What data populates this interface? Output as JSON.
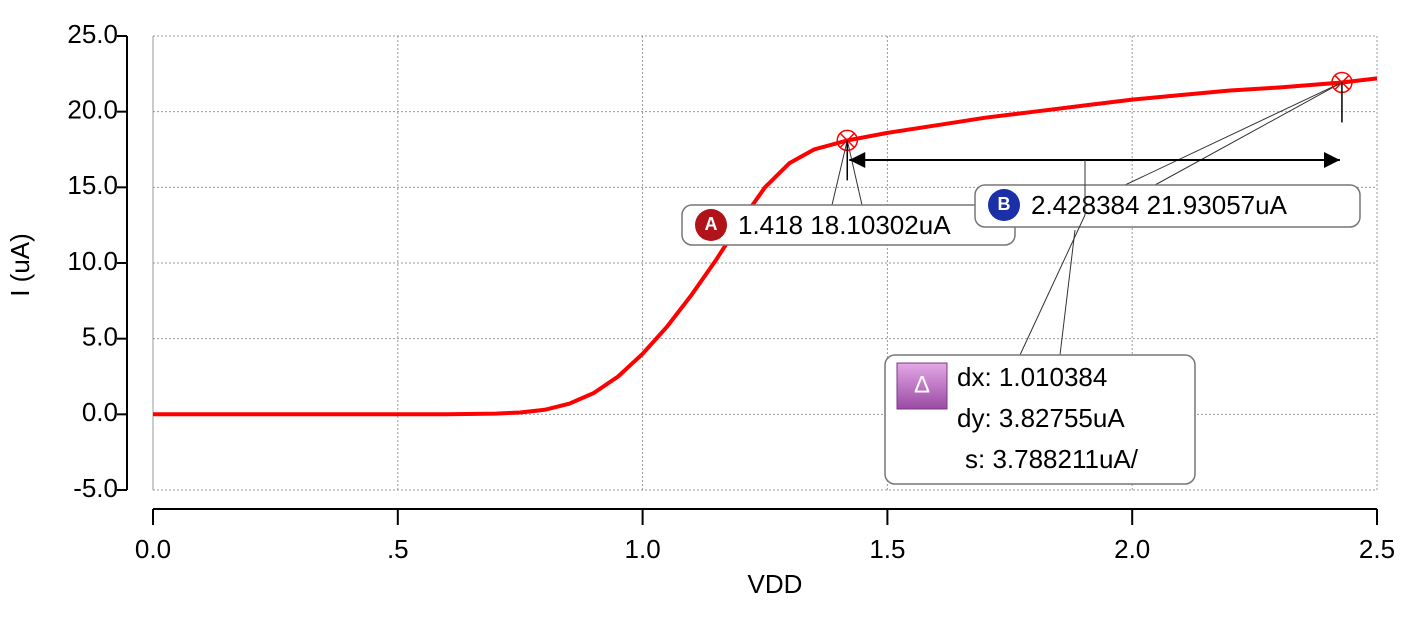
{
  "chart_data": {
    "type": "line",
    "x_label": "VDD",
    "y_label": "I (uA)",
    "x": [
      0,
      0.1,
      0.2,
      0.3,
      0.4,
      0.5,
      0.6,
      0.7,
      0.75,
      0.8,
      0.85,
      0.9,
      0.95,
      1.0,
      1.05,
      1.1,
      1.15,
      1.2,
      1.25,
      1.3,
      1.35,
      1.418,
      1.5,
      1.6,
      1.7,
      1.8,
      1.9,
      2.0,
      2.1,
      2.2,
      2.3,
      2.428384,
      2.5
    ],
    "series": [
      {
        "color": "#ff0000",
        "values": [
          0,
          0,
          0,
          0,
          0,
          0,
          0,
          0.05,
          0.12,
          0.3,
          0.7,
          1.4,
          2.5,
          4.0,
          5.8,
          7.9,
          10.2,
          12.7,
          15.0,
          16.6,
          17.5,
          18.10302,
          18.6,
          19.1,
          19.6,
          20.0,
          20.4,
          20.8,
          21.1,
          21.4,
          21.6,
          21.93057,
          22.2
        ]
      }
    ],
    "xlim": [
      0,
      2.5
    ],
    "xticks": [
      {
        "value": 0,
        "label": "0.0"
      },
      {
        "value": 0.5,
        "label": ".5"
      },
      {
        "value": 1,
        "label": "1.0"
      },
      {
        "value": 1.5,
        "label": "1.5"
      },
      {
        "value": 2,
        "label": "2.0"
      },
      {
        "value": 2.5,
        "label": "2.5"
      }
    ],
    "ylim": [
      -5,
      25
    ],
    "yticks": [
      {
        "value": -5,
        "label": "-5.0"
      },
      {
        "value": 0,
        "label": "0.0"
      },
      {
        "value": 5,
        "label": "5.0"
      },
      {
        "value": 10,
        "label": "10.0"
      },
      {
        "value": 15,
        "label": "15.0"
      },
      {
        "value": 20,
        "label": "20.0"
      },
      {
        "value": 25,
        "label": "25.0"
      }
    ],
    "grid": true,
    "markers": [
      {
        "name": "A",
        "x": 1.418,
        "y": 18.10302,
        "label": "1.418 18.10302uA",
        "color": "#b0141a"
      },
      {
        "name": "B",
        "x": 2.428384,
        "y": 21.93057,
        "label": "2.428384 21.93057uA",
        "color": "#1a2fa8"
      }
    ],
    "delta": {
      "icon": "Δ",
      "lines": [
        "dx: 1.010384",
        "dy: 3.82755uA",
        "s: 3.788211uA/"
      ]
    }
  }
}
